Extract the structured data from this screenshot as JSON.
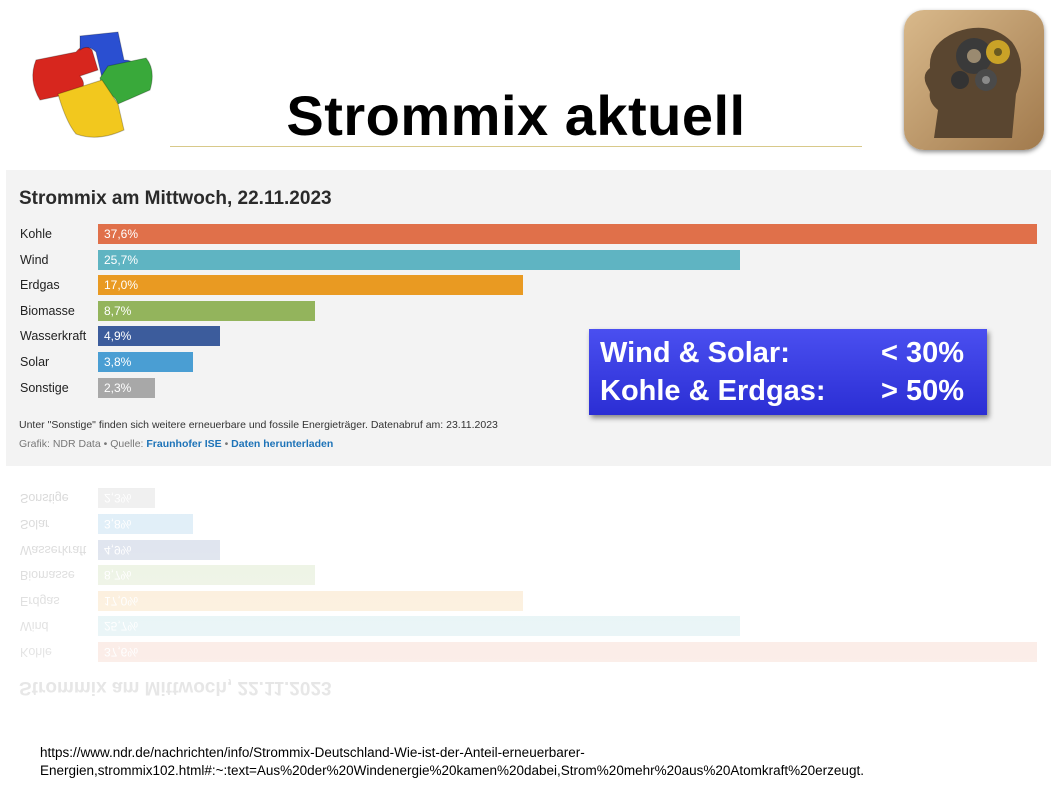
{
  "slide": {
    "title": "Strommix aktuell",
    "source_url_line1": "https://www.ndr.de/nachrichten/info/Strommix-Deutschland-Wie-ist-der-Anteil-erneuerbarer-",
    "source_url_line2": "Energien,strommix102.html#:~:text=Aus%20der%20Windenergie%20kamen%20dabei,Strom%20mehr%20aus%20Atomkraft%20erzeugt."
  },
  "callout": {
    "line1_label": "Wind & Solar:",
    "line1_value": "< 30%",
    "line2_label": "Kohle & Erdgas:",
    "line2_value": "> 50%"
  },
  "chart_data": {
    "type": "bar",
    "orientation": "horizontal",
    "title": "Strommix am Mittwoch, 22.11.2023",
    "categories": [
      "Kohle",
      "Wind",
      "Erdgas",
      "Biomasse",
      "Wasserkraft",
      "Solar",
      "Sonstige"
    ],
    "values": [
      37.6,
      25.7,
      17.0,
      8.7,
      4.9,
      3.8,
      2.3
    ],
    "value_labels": [
      "37,6%",
      "25,7%",
      "17,0%",
      "8,7%",
      "4,9%",
      "3,8%",
      "2,3%"
    ],
    "colors": [
      "#e0704a",
      "#5fb4c2",
      "#e99a22",
      "#93b45c",
      "#3c5c9c",
      "#4a9ed3",
      "#a8a8a8"
    ],
    "xlim": [
      0,
      37.6
    ],
    "note": "Unter \"Sonstige\" finden sich weitere erneuerbare und fossile Energieträger. Datenabruf am: 23.11.2023",
    "credit_prefix": "Grafik: NDR Data • Quelle: ",
    "credit_source": "Fraunhofer ISE",
    "credit_sep": " • ",
    "credit_download": "Daten herunterladen"
  }
}
